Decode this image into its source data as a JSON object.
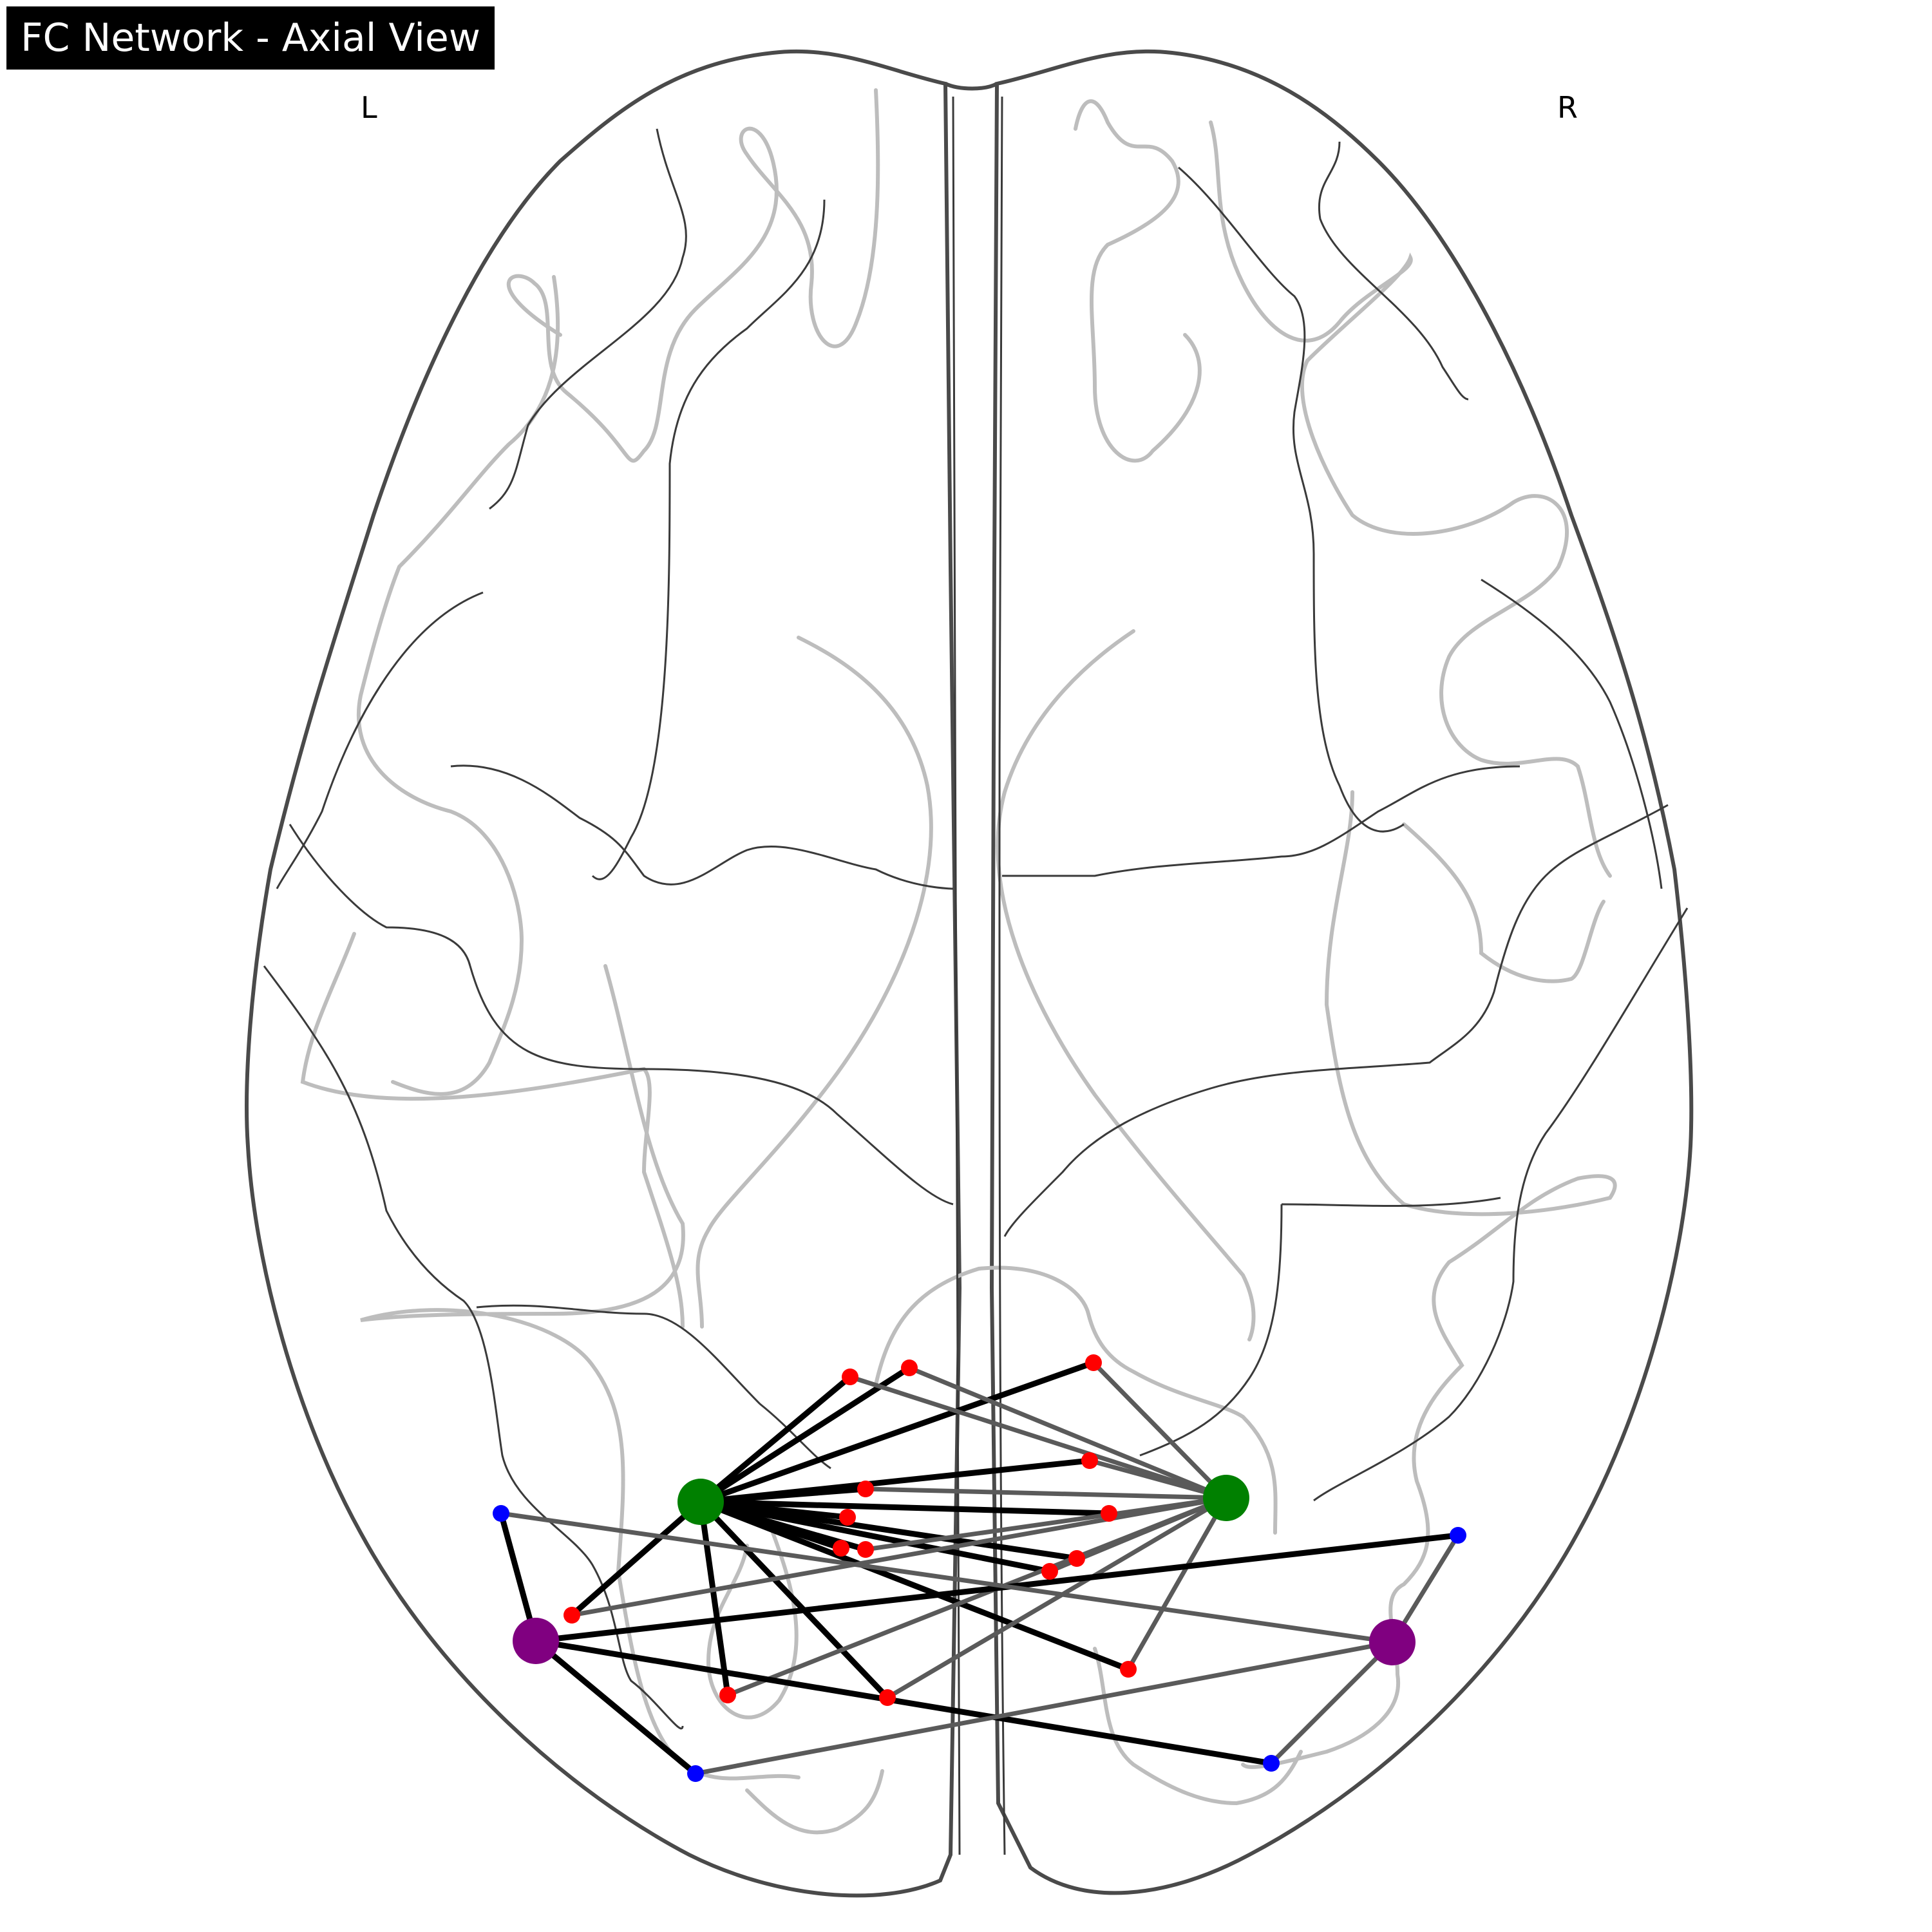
{
  "title": "FC Network - Axial View",
  "hemisphere_labels": {
    "left": "L",
    "right": "R"
  },
  "colors": {
    "hub_node": "#008000",
    "secondary_hub_node": "#800080",
    "peripheral_node_red": "#ff0000",
    "peripheral_node_blue": "#0000ff",
    "strong_edge": "#000000",
    "weak_edge": "#5a5a5a",
    "brain_outline": "#4a4a4a",
    "sulci": "#bdbdbd"
  },
  "network": {
    "nodes": [
      {
        "id": "G1",
        "group": "green"
      },
      {
        "id": "G2",
        "group": "green"
      },
      {
        "id": "P1",
        "group": "purple"
      },
      {
        "id": "P2",
        "group": "purple"
      },
      {
        "id": "R1",
        "group": "red"
      },
      {
        "id": "R2",
        "group": "red"
      },
      {
        "id": "R3",
        "group": "red"
      },
      {
        "id": "R4",
        "group": "red"
      },
      {
        "id": "R5",
        "group": "red"
      },
      {
        "id": "R6",
        "group": "red"
      },
      {
        "id": "R7",
        "group": "red"
      },
      {
        "id": "R8",
        "group": "red"
      },
      {
        "id": "R9",
        "group": "red"
      },
      {
        "id": "R10",
        "group": "red"
      },
      {
        "id": "R11",
        "group": "red"
      },
      {
        "id": "R12",
        "group": "red"
      },
      {
        "id": "R13",
        "group": "red"
      },
      {
        "id": "R14",
        "group": "red"
      },
      {
        "id": "R15",
        "group": "red"
      },
      {
        "id": "B1",
        "group": "blue"
      },
      {
        "id": "B2",
        "group": "blue"
      },
      {
        "id": "B3",
        "group": "blue"
      },
      {
        "id": "B4",
        "group": "blue"
      }
    ],
    "edges": [
      {
        "from": "G1",
        "to": "R1",
        "strength": "strong"
      },
      {
        "from": "G1",
        "to": "R2",
        "strength": "strong"
      },
      {
        "from": "G1",
        "to": "R3",
        "strength": "strong"
      },
      {
        "from": "G1",
        "to": "R4",
        "strength": "strong"
      },
      {
        "from": "G1",
        "to": "R5",
        "strength": "strong"
      },
      {
        "from": "G1",
        "to": "R6",
        "strength": "strong"
      },
      {
        "from": "G1",
        "to": "R7",
        "strength": "strong"
      },
      {
        "from": "G1",
        "to": "R8",
        "strength": "strong"
      },
      {
        "from": "G1",
        "to": "R9",
        "strength": "strong"
      },
      {
        "from": "G1",
        "to": "R10",
        "strength": "strong"
      },
      {
        "from": "G1",
        "to": "R11",
        "strength": "strong"
      },
      {
        "from": "G1",
        "to": "R12",
        "strength": "strong"
      },
      {
        "from": "G1",
        "to": "R13",
        "strength": "strong"
      },
      {
        "from": "G1",
        "to": "R14",
        "strength": "strong"
      },
      {
        "from": "G1",
        "to": "R15",
        "strength": "strong"
      },
      {
        "from": "G2",
        "to": "R1",
        "strength": "weak"
      },
      {
        "from": "G2",
        "to": "R2",
        "strength": "weak"
      },
      {
        "from": "G2",
        "to": "R3",
        "strength": "weak"
      },
      {
        "from": "G2",
        "to": "R4",
        "strength": "weak"
      },
      {
        "from": "G2",
        "to": "R5",
        "strength": "weak"
      },
      {
        "from": "G2",
        "to": "R9",
        "strength": "weak"
      },
      {
        "from": "G2",
        "to": "R10",
        "strength": "weak"
      },
      {
        "from": "G2",
        "to": "R11",
        "strength": "weak"
      },
      {
        "from": "G2",
        "to": "R12",
        "strength": "weak"
      },
      {
        "from": "G2",
        "to": "R13",
        "strength": "weak"
      },
      {
        "from": "G2",
        "to": "R14",
        "strength": "weak"
      },
      {
        "from": "G2",
        "to": "R15",
        "strength": "weak"
      },
      {
        "from": "P1",
        "to": "B1",
        "strength": "strong"
      },
      {
        "from": "P1",
        "to": "B3",
        "strength": "strong"
      },
      {
        "from": "P1",
        "to": "B2",
        "strength": "strong"
      },
      {
        "from": "P1",
        "to": "B4",
        "strength": "strong"
      },
      {
        "from": "P2",
        "to": "B1",
        "strength": "weak"
      },
      {
        "from": "P2",
        "to": "B2",
        "strength": "weak"
      },
      {
        "from": "P2",
        "to": "B3",
        "strength": "weak"
      },
      {
        "from": "P2",
        "to": "B4",
        "strength": "weak"
      }
    ]
  }
}
